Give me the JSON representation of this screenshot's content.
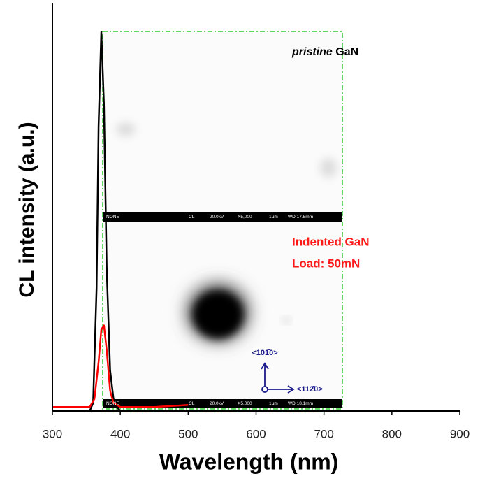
{
  "chart_data": {
    "type": "line",
    "xlabel": "Wavelength (nm)",
    "ylabel": "CL intensity (a.u.)",
    "xlim": [
      300,
      900
    ],
    "xticks": [
      300,
      400,
      500,
      600,
      700,
      800,
      900
    ],
    "ylim": [
      0,
      1
    ],
    "series": [
      {
        "color": "#000000",
        "x": [
          355,
          360,
          365,
          368,
          372,
          376,
          380,
          385,
          390,
          395,
          400
        ],
        "values": [
          0,
          0.02,
          0.3,
          0.7,
          0.93,
          0.75,
          0.35,
          0.1,
          0.03,
          0.01,
          0
        ]
      },
      {
        "color": "#ff0000",
        "x": [
          300,
          340,
          355,
          362,
          368,
          372,
          376,
          380,
          385,
          390,
          400,
          450,
          500
        ],
        "values": [
          0.01,
          0.01,
          0.01,
          0.03,
          0.12,
          0.2,
          0.21,
          0.15,
          0.05,
          0.02,
          0.01,
          0.01,
          0.015
        ]
      }
    ],
    "annotations": {
      "pristine_italic": "pristine",
      "pristine_rest": "GaN",
      "indented": "Indented GaN",
      "load": "Load: 50mN",
      "dir_up": "<101̄0>",
      "dir_right": "<112̄0>"
    },
    "insets": [
      {
        "info": [
          "NONE",
          "CL",
          "20.0kV",
          "X5,000",
          "1μm",
          "WD 17.5mm"
        ]
      },
      {
        "info": [
          "NONE",
          "CL",
          "20.0kV",
          "X5,000",
          "1μm",
          "WD 18.1mm"
        ]
      }
    ]
  }
}
